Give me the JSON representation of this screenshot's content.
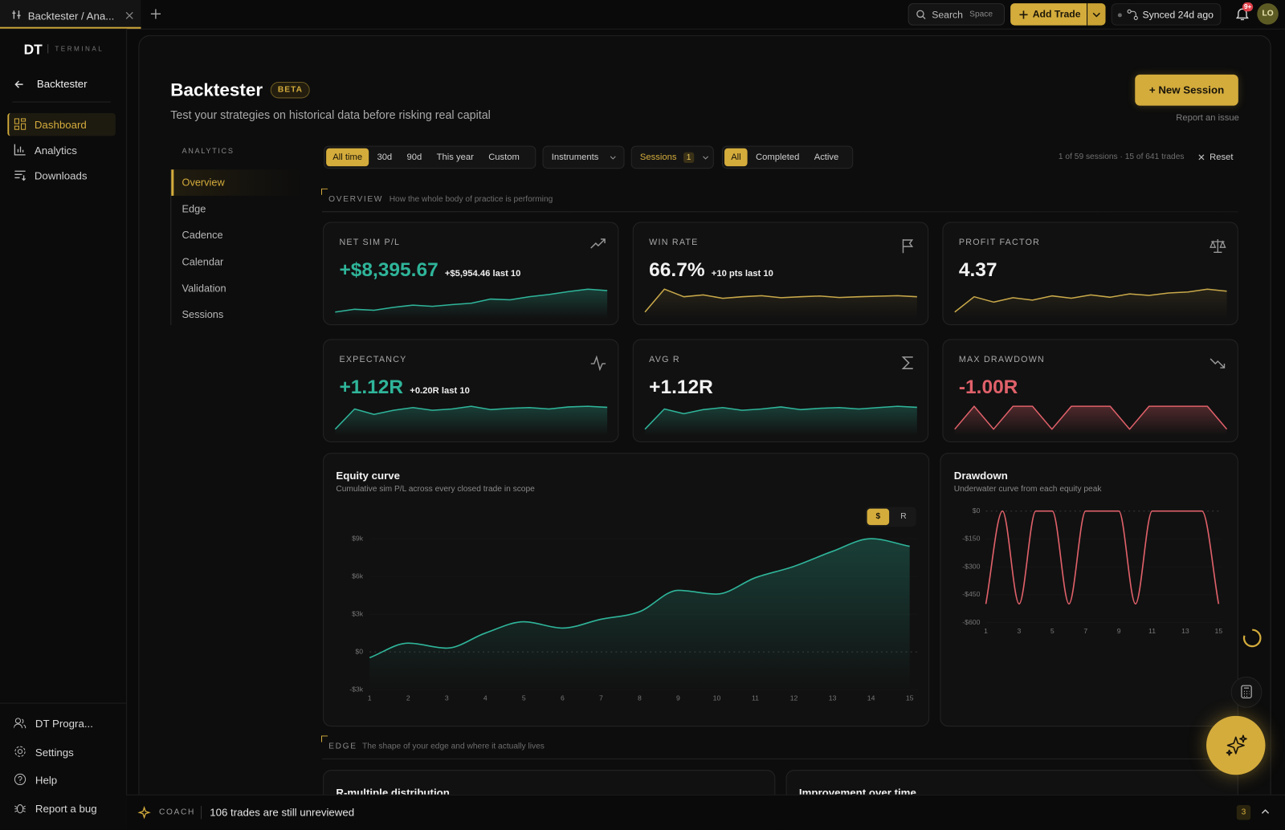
{
  "tab": {
    "title": "Backtester / Ana..."
  },
  "topbar": {
    "search": "Search",
    "search_shortcut": "Space",
    "add_trade": "Add Trade",
    "synced": "Synced 24d ago",
    "notifications": "9+",
    "avatar": "LO"
  },
  "sidebar": {
    "logo": "DT",
    "logo_sub": "TERMINAL",
    "back": "Backtester",
    "nav": [
      "Dashboard",
      "Analytics",
      "Downloads"
    ],
    "footer": [
      "DT Progra...",
      "Settings",
      "Help",
      "Report a bug"
    ]
  },
  "header": {
    "title": "Backtester",
    "badge": "BETA",
    "subtitle": "Test your strategies on historical data before risking real capital",
    "new_session": "+ New Session",
    "report": "Report an issue"
  },
  "analytics_nav": {
    "heading": "ANALYTICS",
    "items": [
      "Overview",
      "Edge",
      "Cadence",
      "Calendar",
      "Validation",
      "Sessions"
    ]
  },
  "filters": {
    "range": [
      "All time",
      "30d",
      "90d",
      "This year",
      "Custom"
    ],
    "instruments": "Instruments",
    "sessions": "Sessions",
    "sessions_count": 1,
    "status": [
      "All",
      "Completed",
      "Active"
    ],
    "summary": "1 of 59 sessions · 15 of 641 trades",
    "reset": "Reset"
  },
  "overview": {
    "label": "OVERVIEW",
    "description": "How the whole body of practice is performing"
  },
  "kpis": [
    {
      "label": "NET SIM P/L",
      "value": "+$8,395.67",
      "delta": "+$5,954.46 last 10",
      "value_color": "#2fb59a",
      "color": "#2fb59a",
      "spark": [
        -460,
        700,
        300,
        1500,
        2400,
        1900,
        2600,
        3200,
        4900,
        4600,
        5900,
        6800,
        8000,
        9000,
        8395.67
      ]
    },
    {
      "label": "WIN RATE",
      "value": "66.7%",
      "delta": "+10 pts last 10",
      "value_color": "#f2f2f2",
      "color": "#c9a94a",
      "spark": [
        0,
        100,
        66.7,
        75,
        60,
        66.7,
        71.4,
        62.5,
        66.7,
        70,
        63.6,
        66.7,
        69.2,
        71.4,
        66.7
      ]
    },
    {
      "label": "PROFIT FACTOR",
      "value": "4.37",
      "value_color": "#f2f2f2",
      "color": "#c9a94a",
      "spark": [
        0,
        3.2,
        2.1,
        3.0,
        2.5,
        3.4,
        2.9,
        3.6,
        3.1,
        3.8,
        3.5,
        4.0,
        4.2,
        4.8,
        4.37
      ]
    },
    {
      "label": "EXPECTANCY",
      "value": "+1.12R",
      "delta": "+0.20R last 10",
      "value_color": "#2fb59a",
      "color": "#2fb59a",
      "spark": [
        -0.5,
        1.0,
        0.6,
        0.9,
        1.1,
        0.9,
        1.0,
        1.2,
        0.95,
        1.05,
        1.1,
        1.0,
        1.15,
        1.2,
        1.12
      ]
    },
    {
      "label": "AVG R",
      "value": "+1.12R",
      "value_color": "#f2f2f2",
      "color": "#2fb59a",
      "spark": [
        -0.5,
        1.0,
        0.65,
        0.95,
        1.1,
        0.9,
        1.0,
        1.15,
        0.95,
        1.05,
        1.1,
        1.0,
        1.1,
        1.2,
        1.12
      ]
    },
    {
      "label": "MAX DRAWDOWN",
      "value": "-1.00R",
      "value_color": "#e0616a",
      "color": "#e0616a",
      "spark": [
        -1,
        0,
        -1,
        0,
        0,
        -1,
        0,
        0,
        0,
        -1,
        0,
        0,
        0,
        0,
        -1
      ]
    }
  ],
  "chart_data": [
    {
      "type": "area",
      "title": "Equity curve",
      "subtitle": "Cumulative sim P/L across every closed trade in scope",
      "toggle": [
        "$",
        "R"
      ],
      "x": [
        1,
        2,
        3,
        4,
        5,
        6,
        7,
        8,
        9,
        10,
        11,
        12,
        13,
        14,
        15
      ],
      "values": [
        -460,
        700,
        300,
        1500,
        2400,
        1900,
        2600,
        3200,
        4900,
        4600,
        5900,
        6800,
        8000,
        9000,
        8395.67
      ],
      "color": "#2fb59a",
      "xlim": [
        1,
        15
      ],
      "xticks": [
        1,
        2,
        3,
        4,
        5,
        6,
        7,
        8,
        9,
        10,
        11,
        12,
        13,
        14,
        15
      ],
      "ylim": [
        -3000,
        11000
      ],
      "yticks": [
        {
          "value": -3000,
          "label": "-$3k"
        },
        {
          "value": 0,
          "label": "$0"
        },
        {
          "value": 3000,
          "label": "$3k"
        },
        {
          "value": 6000,
          "label": "$6k"
        },
        {
          "value": 9000,
          "label": "$9k"
        }
      ],
      "grid": true
    },
    {
      "type": "line",
      "title": "Drawdown",
      "subtitle": "Underwater curve from each equity peak",
      "x": [
        1,
        2,
        3,
        4,
        5,
        6,
        7,
        8,
        9,
        10,
        11,
        12,
        13,
        14,
        15
      ],
      "values": [
        -500,
        0,
        -500,
        0,
        0,
        -500,
        0,
        0,
        0,
        -500,
        0,
        0,
        0,
        0,
        -500
      ],
      "color": "#e0616a",
      "xlim": [
        1,
        15
      ],
      "xticks": [
        1,
        3,
        5,
        7,
        9,
        11,
        13,
        15
      ],
      "ylim": [
        -600,
        0
      ],
      "yticks": [
        {
          "value": 0,
          "label": "$0"
        },
        {
          "value": -150,
          "label": "-$150"
        },
        {
          "value": -300,
          "label": "-$300"
        },
        {
          "value": -450,
          "label": "-$450"
        },
        {
          "value": -600,
          "label": "-$600"
        }
      ],
      "grid": true
    }
  ],
  "edge": {
    "label": "EDGE",
    "description": "The shape of your edge and where it actually lives",
    "cards": [
      "R-multiple distribution",
      "Improvement over time"
    ]
  },
  "coach": {
    "label": "COACH",
    "message": "106 trades are still unreviewed",
    "count": 3
  }
}
